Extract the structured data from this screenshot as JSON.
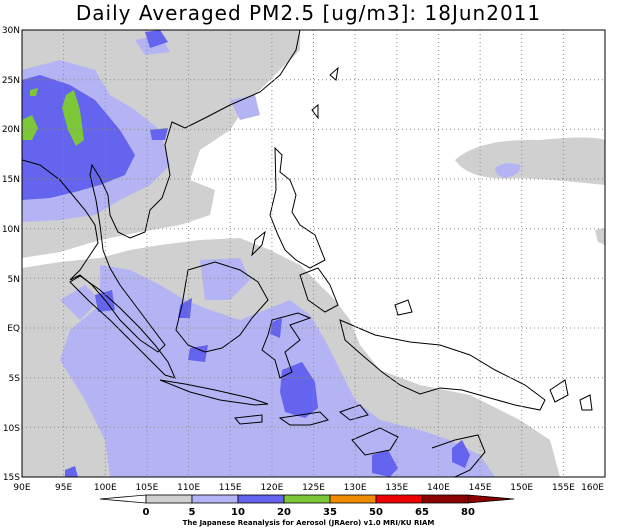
{
  "title": "Daily Averaged PM2.5 [ug/m3]: 18Jun2011",
  "credit": "The Japanese Reanalysis for Aerosol (JRAero) v1.0 MRI/KU RIAM",
  "lat_ticks": [
    "30N",
    "25N",
    "20N",
    "15N",
    "10N",
    "5N",
    "EQ",
    "5S",
    "10S",
    "15S"
  ],
  "lon_ticks": [
    "90E",
    "95E",
    "100E",
    "105E",
    "110E",
    "115E",
    "120E",
    "125E",
    "130E",
    "135E",
    "140E",
    "145E",
    "150E",
    "155E",
    "160E"
  ],
  "legend": {
    "levels": [
      "0",
      "5",
      "10",
      "20",
      "35",
      "50",
      "65",
      "80"
    ],
    "colors": [
      "#ffffff",
      "#d0d0d0",
      "#b4b4f4",
      "#6464ee",
      "#7cc838",
      "#f08c00",
      "#ee0000",
      "#8c0000"
    ]
  },
  "chart_data": {
    "type": "heatmap",
    "title": "Daily Averaged PM2.5 [ug/m3]: 18Jun2011",
    "variable": "PM2.5",
    "units": "ug/m3",
    "date": "18Jun2011",
    "lon_range": [
      90,
      160
    ],
    "lat_range": [
      -15,
      30
    ],
    "x_ticks": [
      "90E",
      "95E",
      "100E",
      "105E",
      "110E",
      "115E",
      "120E",
      "125E",
      "130E",
      "135E",
      "140E",
      "145E",
      "150E",
      "155E",
      "160E"
    ],
    "y_ticks": [
      "30N",
      "25N",
      "20N",
      "15N",
      "10N",
      "5N",
      "EQ",
      "5S",
      "10S",
      "15S"
    ],
    "contour_levels": [
      0,
      5,
      10,
      20,
      35,
      50,
      65,
      80
    ],
    "grid": true,
    "legend": "bottom colorbar"
  }
}
